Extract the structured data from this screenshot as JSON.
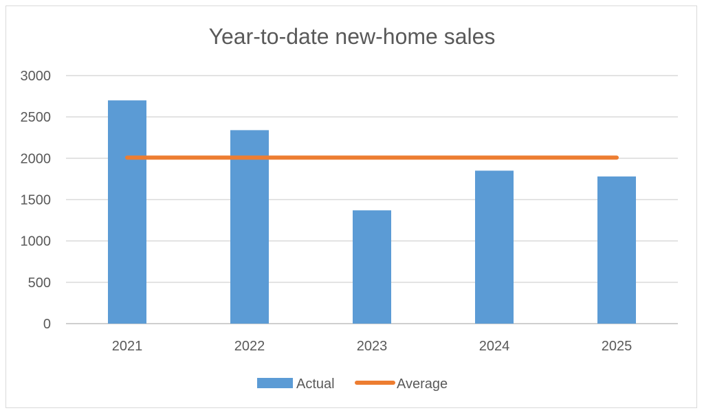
{
  "chart_data": {
    "type": "bar",
    "title": "Year-to-date new-home sales",
    "categories": [
      "2021",
      "2022",
      "2023",
      "2024",
      "2025"
    ],
    "series": [
      {
        "name": "Actual",
        "type": "bar",
        "values": [
          2700,
          2340,
          1370,
          1850,
          1780
        ],
        "color": "#5b9bd5"
      },
      {
        "name": "Average",
        "type": "line",
        "values": [
          2008,
          2008,
          2008,
          2008,
          2008
        ],
        "color": "#ed7d31"
      }
    ],
    "xlabel": "",
    "ylabel": "",
    "ylim": [
      0,
      3000
    ],
    "yticks": [
      0,
      500,
      1000,
      1500,
      2000,
      2500,
      3000
    ],
    "grid": true,
    "legend": "bottom"
  }
}
